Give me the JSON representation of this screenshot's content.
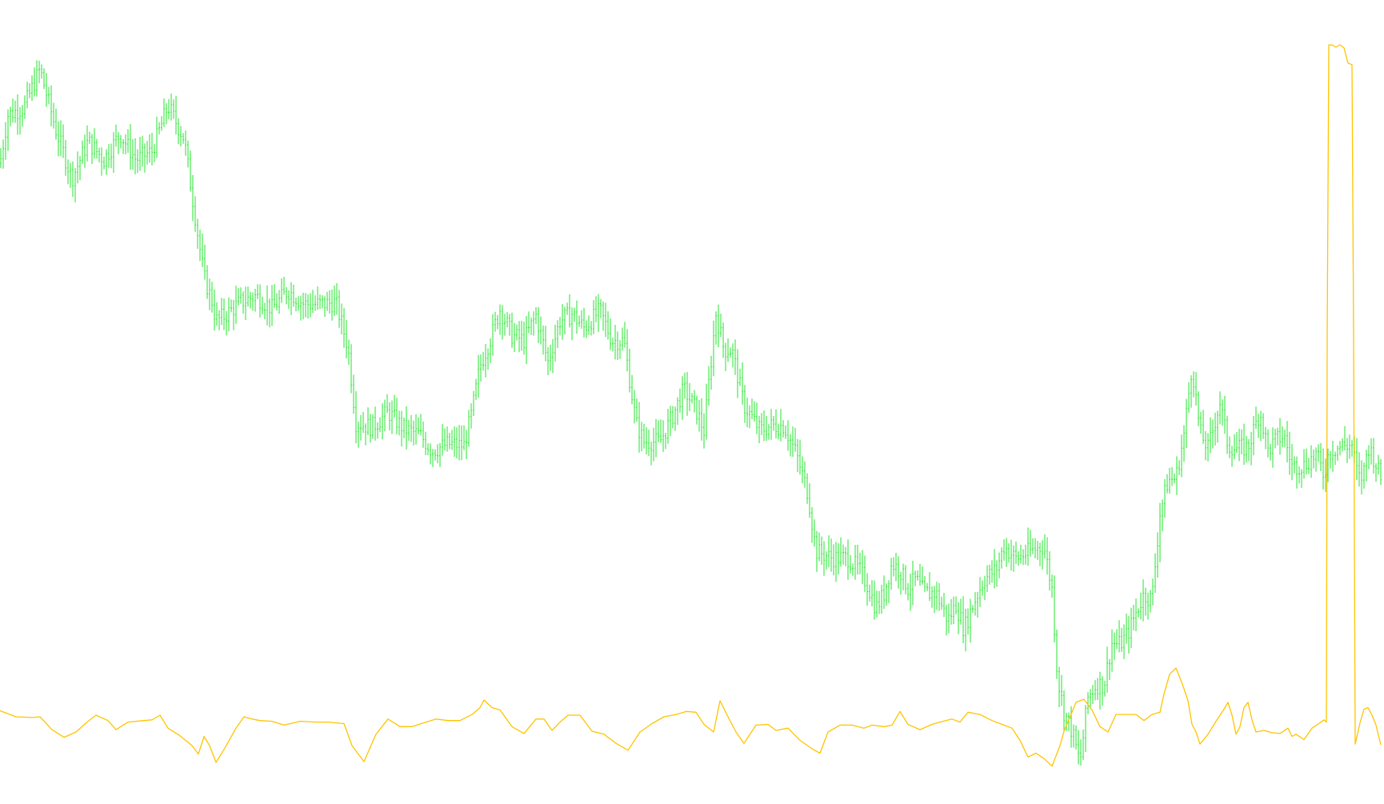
{
  "chart_data": {
    "type": "line",
    "title": "",
    "xlabel": "",
    "ylabel": "",
    "grid": false,
    "legend": "none",
    "colors": {
      "price": "#22e32b",
      "indicator": "#ffc400",
      "background": "#ffffff"
    },
    "ylim": [
      0,
      100
    ],
    "series": [
      {
        "key": "price",
        "style": "ohlc-bars",
        "anchors": [
          [
            0,
            82.7
          ],
          [
            10,
            89.1
          ],
          [
            30,
            90.1
          ],
          [
            50,
            95.1
          ],
          [
            70,
            87.1
          ],
          [
            90,
            80.7
          ],
          [
            110,
            85.6
          ],
          [
            130,
            83.2
          ],
          [
            150,
            86.6
          ],
          [
            170,
            83.2
          ],
          [
            190,
            84.3
          ],
          [
            210,
            90.3
          ],
          [
            230,
            86.0
          ],
          [
            245,
            75.0
          ],
          [
            255,
            67.8
          ],
          [
            265,
            64.6
          ],
          [
            270,
            62.0
          ],
          [
            280,
            62.6
          ],
          [
            300,
            64.4
          ],
          [
            320,
            65.3
          ],
          [
            340,
            63.6
          ],
          [
            360,
            66.0
          ],
          [
            380,
            64.2
          ],
          [
            400,
            64.2
          ],
          [
            420,
            64.4
          ],
          [
            435,
            58.5
          ],
          [
            445,
            48.6
          ],
          [
            465,
            48.0
          ],
          [
            485,
            50.0
          ],
          [
            505,
            47.8
          ],
          [
            525,
            47.0
          ],
          [
            540,
            44.9
          ],
          [
            560,
            45.8
          ],
          [
            580,
            45.6
          ],
          [
            590,
            50.0
          ],
          [
            600,
            56.0
          ],
          [
            615,
            60.2
          ],
          [
            625,
            63.5
          ],
          [
            640,
            60.1
          ],
          [
            655,
            59.4
          ],
          [
            670,
            62.7
          ],
          [
            685,
            56.6
          ],
          [
            700,
            62.0
          ],
          [
            715,
            62.9
          ],
          [
            730,
            61.1
          ],
          [
            750,
            63.3
          ],
          [
            765,
            59.4
          ],
          [
            780,
            59.4
          ],
          [
            795,
            48.6
          ],
          [
            805,
            46.1
          ],
          [
            815,
            46.1
          ],
          [
            825,
            46.1
          ],
          [
            840,
            49.3
          ],
          [
            855,
            53.0
          ],
          [
            870,
            50.3
          ],
          [
            880,
            47.5
          ],
          [
            895,
            63.0
          ],
          [
            905,
            58.2
          ],
          [
            915,
            58.2
          ],
          [
            930,
            50.9
          ],
          [
            950,
            47.6
          ],
          [
            965,
            48.2
          ],
          [
            980,
            48.2
          ],
          [
            995,
            44.6
          ],
          [
            1010,
            39.3
          ],
          [
            1020,
            31.7
          ],
          [
            1040,
            30.8
          ],
          [
            1060,
            30.8
          ],
          [
            1075,
            29.1
          ],
          [
            1085,
            27.1
          ],
          [
            1095,
            24.2
          ],
          [
            1105,
            26.1
          ],
          [
            1115,
            30.1
          ],
          [
            1125,
            29.2
          ],
          [
            1135,
            26.8
          ],
          [
            1145,
            28.0
          ],
          [
            1155,
            26.2
          ],
          [
            1170,
            26.2
          ],
          [
            1185,
            22.6
          ],
          [
            1195,
            24.7
          ],
          [
            1205,
            21.4
          ],
          [
            1215,
            24.3
          ],
          [
            1230,
            28.0
          ],
          [
            1245,
            29.2
          ],
          [
            1255,
            32.3
          ],
          [
            1270,
            30.7
          ],
          [
            1290,
            31.8
          ],
          [
            1305,
            32.4
          ],
          [
            1315,
            26.7
          ],
          [
            1322,
            15.0
          ],
          [
            1330,
            10.5
          ],
          [
            1340,
            8.0
          ],
          [
            1350,
            3.8
          ],
          [
            1360,
            12.4
          ],
          [
            1370,
            14.1
          ],
          [
            1380,
            14.1
          ],
          [
            1390,
            19.6
          ],
          [
            1400,
            19.4
          ],
          [
            1410,
            20.9
          ],
          [
            1420,
            23.6
          ],
          [
            1430,
            26.0
          ],
          [
            1440,
            25.3
          ],
          [
            1450,
            36.7
          ],
          [
            1460,
            41.0
          ],
          [
            1470,
            41.3
          ],
          [
            1480,
            47.0
          ],
          [
            1490,
            56.2
          ],
          [
            1500,
            47.3
          ],
          [
            1510,
            45.2
          ],
          [
            1525,
            51.3
          ],
          [
            1535,
            45.6
          ],
          [
            1545,
            45.2
          ],
          [
            1560,
            45.3
          ],
          [
            1575,
            50.1
          ],
          [
            1585,
            44.9
          ],
          [
            1595,
            46.3
          ],
          [
            1605,
            46.9
          ],
          [
            1615,
            42.9
          ],
          [
            1630,
            43.0
          ],
          [
            1645,
            44.4
          ],
          [
            1655,
            41.7
          ],
          [
            1660,
            44.2
          ],
          [
            1665,
            45.0
          ],
          [
            1680,
            45.6
          ],
          [
            1690,
            45.6
          ],
          [
            1698,
            41.2
          ],
          [
            1704,
            41.6
          ],
          [
            1710,
            45.6
          ],
          [
            1718,
            43.8
          ],
          [
            1726,
            41.2
          ]
        ]
      },
      {
        "key": "indicator",
        "style": "line",
        "points": [
          [
            0,
            10.7
          ],
          [
            20,
            9.9
          ],
          [
            40,
            9.8
          ],
          [
            50,
            9.9
          ],
          [
            65,
            8.2
          ],
          [
            80,
            7.2
          ],
          [
            95,
            7.9
          ],
          [
            110,
            9.3
          ],
          [
            120,
            10.1
          ],
          [
            135,
            9.4
          ],
          [
            145,
            8.2
          ],
          [
            160,
            9.2
          ],
          [
            180,
            9.4
          ],
          [
            190,
            9.5
          ],
          [
            200,
            10.1
          ],
          [
            210,
            8.4
          ],
          [
            225,
            7.4
          ],
          [
            240,
            6.1
          ],
          [
            248,
            5.0
          ],
          [
            255,
            7.3
          ],
          [
            262,
            6.1
          ],
          [
            270,
            3.9
          ],
          [
            280,
            5.6
          ],
          [
            295,
            8.4
          ],
          [
            305,
            9.9
          ],
          [
            315,
            9.6
          ],
          [
            325,
            9.4
          ],
          [
            340,
            9.3
          ],
          [
            355,
            8.8
          ],
          [
            375,
            9.3
          ],
          [
            395,
            9.2
          ],
          [
            410,
            9.2
          ],
          [
            430,
            9.0
          ],
          [
            440,
            6.1
          ],
          [
            455,
            4.0
          ],
          [
            470,
            7.6
          ],
          [
            485,
            9.6
          ],
          [
            500,
            8.6
          ],
          [
            515,
            8.6
          ],
          [
            530,
            9.1
          ],
          [
            545,
            9.6
          ],
          [
            560,
            9.4
          ],
          [
            575,
            9.4
          ],
          [
            590,
            10.2
          ],
          [
            600,
            11.1
          ],
          [
            605,
            12.1
          ],
          [
            615,
            11.1
          ],
          [
            625,
            10.8
          ],
          [
            640,
            8.6
          ],
          [
            655,
            7.7
          ],
          [
            670,
            9.6
          ],
          [
            680,
            9.6
          ],
          [
            690,
            8.1
          ],
          [
            700,
            9.2
          ],
          [
            710,
            10.1
          ],
          [
            725,
            10.1
          ],
          [
            740,
            8.0
          ],
          [
            755,
            7.6
          ],
          [
            770,
            6.4
          ],
          [
            785,
            5.5
          ],
          [
            800,
            7.9
          ],
          [
            815,
            9.0
          ],
          [
            830,
            9.9
          ],
          [
            845,
            10.2
          ],
          [
            858,
            10.6
          ],
          [
            870,
            10.5
          ],
          [
            880,
            8.9
          ],
          [
            892,
            7.9
          ],
          [
            900,
            12.0
          ],
          [
            910,
            9.9
          ],
          [
            920,
            7.9
          ],
          [
            930,
            6.4
          ],
          [
            945,
            8.8
          ],
          [
            960,
            8.9
          ],
          [
            970,
            8.1
          ],
          [
            985,
            8.4
          ],
          [
            1000,
            6.8
          ],
          [
            1015,
            5.7
          ],
          [
            1025,
            5.1
          ],
          [
            1035,
            7.9
          ],
          [
            1050,
            8.8
          ],
          [
            1065,
            8.8
          ],
          [
            1080,
            8.4
          ],
          [
            1090,
            8.8
          ],
          [
            1105,
            8.6
          ],
          [
            1115,
            8.8
          ],
          [
            1125,
            10.6
          ],
          [
            1135,
            8.9
          ],
          [
            1150,
            8.2
          ],
          [
            1165,
            8.9
          ],
          [
            1175,
            9.2
          ],
          [
            1190,
            9.6
          ],
          [
            1200,
            9.2
          ],
          [
            1210,
            10.5
          ],
          [
            1225,
            10.2
          ],
          [
            1240,
            9.4
          ],
          [
            1255,
            8.8
          ],
          [
            1265,
            8.4
          ],
          [
            1275,
            6.8
          ],
          [
            1285,
            4.6
          ],
          [
            1295,
            5.1
          ],
          [
            1305,
            4.4
          ],
          [
            1315,
            3.4
          ],
          [
            1325,
            6.1
          ],
          [
            1330,
            8.0
          ],
          [
            1340,
            10.5
          ],
          [
            1345,
            11.8
          ],
          [
            1355,
            12.2
          ],
          [
            1365,
            10.8
          ],
          [
            1375,
            8.6
          ],
          [
            1385,
            7.9
          ],
          [
            1395,
            10.2
          ],
          [
            1410,
            10.2
          ],
          [
            1420,
            10.2
          ],
          [
            1430,
            9.4
          ],
          [
            1440,
            10.2
          ],
          [
            1450,
            10.5
          ],
          [
            1455,
            12.9
          ],
          [
            1462,
            15.5
          ],
          [
            1470,
            16.3
          ],
          [
            1478,
            14.2
          ],
          [
            1485,
            12.0
          ],
          [
            1490,
            8.9
          ],
          [
            1495,
            7.9
          ],
          [
            1500,
            6.3
          ],
          [
            1510,
            7.6
          ],
          [
            1520,
            9.3
          ],
          [
            1530,
            10.9
          ],
          [
            1535,
            11.8
          ],
          [
            1540,
            10.1
          ],
          [
            1545,
            7.6
          ],
          [
            1550,
            8.6
          ],
          [
            1555,
            11.1
          ],
          [
            1560,
            11.8
          ],
          [
            1565,
            9.5
          ],
          [
            1570,
            7.9
          ],
          [
            1580,
            8.1
          ],
          [
            1590,
            7.8
          ],
          [
            1600,
            7.7
          ],
          [
            1610,
            8.4
          ],
          [
            1615,
            7.3
          ],
          [
            1620,
            7.6
          ],
          [
            1630,
            6.9
          ],
          [
            1640,
            8.4
          ],
          [
            1650,
            9.1
          ],
          [
            1655,
            9.5
          ],
          [
            1658,
            9.2
          ],
          [
            1659,
            60.0
          ],
          [
            1661,
            98.3
          ],
          [
            1665,
            98.3
          ],
          [
            1670,
            98.0
          ],
          [
            1675,
            98.3
          ],
          [
            1680,
            97.9
          ],
          [
            1685,
            95.9
          ],
          [
            1690,
            95.7
          ],
          [
            1692,
            60.0
          ],
          [
            1694,
            6.3
          ],
          [
            1700,
            9.1
          ],
          [
            1705,
            10.9
          ],
          [
            1710,
            11.1
          ],
          [
            1715,
            10.1
          ],
          [
            1720,
            8.8
          ],
          [
            1726,
            6.2
          ]
        ]
      }
    ]
  }
}
